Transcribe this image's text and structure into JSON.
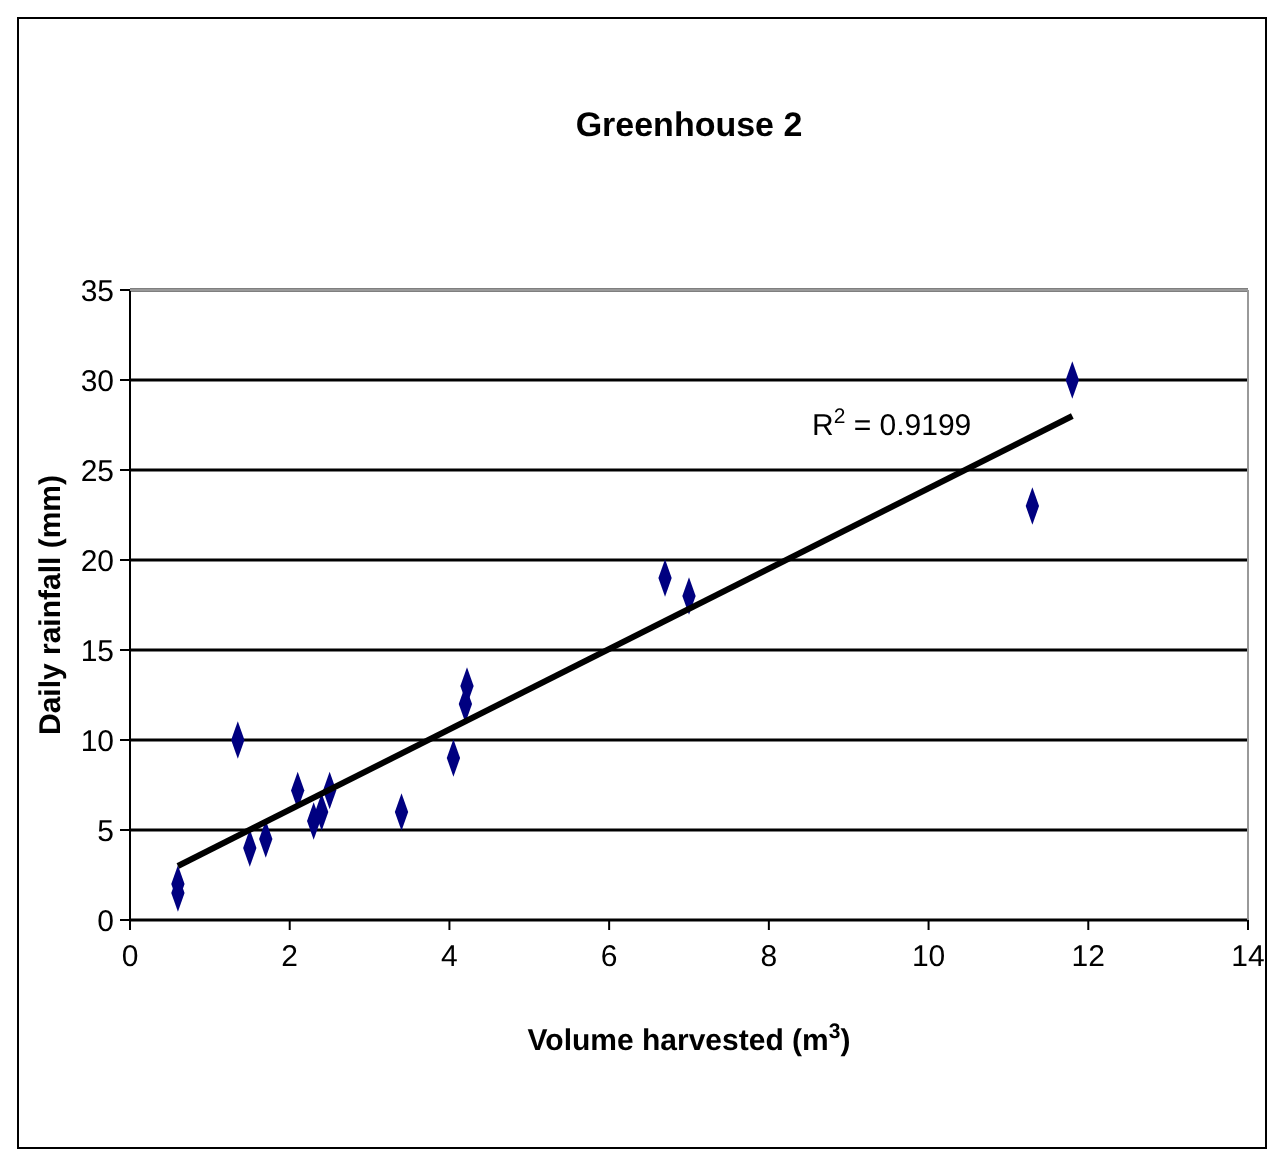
{
  "chart_data": {
    "type": "scatter",
    "title": "Greenhouse 2",
    "xlabel": "Volume harvested (m$^{3}$)",
    "ylabel": "Daily rainfall (mm)",
    "xlim": [
      0,
      14
    ],
    "xticks": [
      0,
      2,
      4,
      6,
      8,
      10,
      12,
      14
    ],
    "ylim": [
      0,
      35
    ],
    "yticks": [
      0,
      5,
      10,
      15,
      20,
      25,
      30,
      35
    ],
    "grid": "y",
    "marker": "diamond",
    "annotations": [
      "R$^{2}$ = 0.9199"
    ],
    "series": [
      {
        "color": "#000080",
        "x": [
          0.6,
          0.6,
          1.35,
          1.5,
          1.7,
          2.1,
          2.3,
          2.4,
          2.5,
          3.4,
          4.05,
          4.2,
          4.22,
          6.7,
          7.0,
          11.3,
          11.8
        ],
        "values": [
          2,
          1.5,
          10,
          4,
          4.5,
          7.2,
          5.5,
          6,
          7.2,
          6,
          9,
          12,
          13,
          19,
          18,
          23,
          30
        ]
      },
      {
        "type": "line",
        "color": "#000000",
        "x": [
          0.6,
          11.8
        ],
        "values": [
          3,
          28
        ],
        "marker": "none"
      }
    ]
  }
}
